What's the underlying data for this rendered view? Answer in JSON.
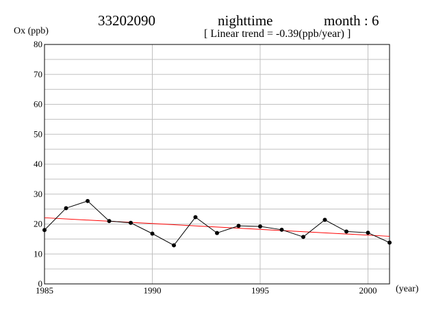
{
  "header": {
    "station": "33202090",
    "period": "nighttime",
    "month": "month : 6",
    "trend_note": "[ Linear trend = -0.39(ppb/year) ]"
  },
  "chart_data": {
    "type": "line",
    "ylabel": "Ox (ppb)",
    "xlabel": "(year)",
    "xlim": [
      1985,
      2001
    ],
    "ylim": [
      0,
      80
    ],
    "x_ticks": [
      1985,
      1990,
      1995,
      2000
    ],
    "y_ticks": [
      0,
      10,
      20,
      30,
      40,
      50,
      60,
      70,
      80
    ],
    "grid": true,
    "series": [
      {
        "x": [
          1985,
          1986,
          1987,
          1988,
          1989,
          1990,
          1991,
          1992,
          1993,
          1994,
          1995,
          1996,
          1997,
          1998,
          1999,
          2000,
          2001
        ],
        "values": [
          18.0,
          25.3,
          27.7,
          21.0,
          20.4,
          16.8,
          12.9,
          22.3,
          17.0,
          19.4,
          19.2,
          18.1,
          15.7,
          21.4,
          17.5,
          17.1,
          13.8
        ],
        "color": "#000000"
      }
    ],
    "trend": {
      "slope": -0.39,
      "start": [
        1985,
        22.1
      ],
      "end": [
        2001,
        15.9
      ],
      "color": "#ff0000"
    }
  }
}
